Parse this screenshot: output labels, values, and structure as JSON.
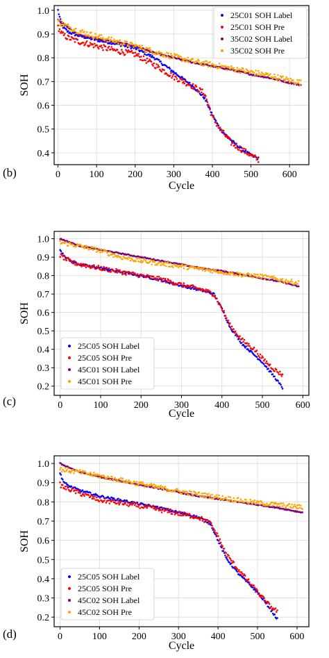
{
  "chart_data": [
    {
      "type": "scatter",
      "panel_label": "(b)",
      "xlabel": "Cycle",
      "ylabel": "SOH",
      "xlim": [
        -10,
        650
      ],
      "ylim": [
        0.35,
        1.02
      ],
      "xticks": [
        0,
        100,
        200,
        300,
        400,
        500,
        600
      ],
      "yticks": [
        0.4,
        0.5,
        0.6,
        0.7,
        0.8,
        0.9,
        1.0
      ],
      "grid": true,
      "legend_position": "top-right",
      "series": [
        {
          "name": "25C01 SOH Label",
          "color": "#0000ff",
          "points": [
            [
              0,
              1.0
            ],
            [
              10,
              0.935
            ],
            [
              25,
              0.91
            ],
            [
              50,
              0.895
            ],
            [
              100,
              0.875
            ],
            [
              150,
              0.86
            ],
            [
              200,
              0.84
            ],
            [
              250,
              0.8
            ],
            [
              300,
              0.74
            ],
            [
              350,
              0.68
            ],
            [
              380,
              0.63
            ],
            [
              400,
              0.56
            ],
            [
              420,
              0.5
            ],
            [
              450,
              0.45
            ],
            [
              480,
              0.41
            ],
            [
              500,
              0.39
            ],
            [
              520,
              0.375
            ]
          ]
        },
        {
          "name": "25C01 SOH Pre",
          "color": "#ff0000",
          "points": [
            [
              0,
              0.93
            ],
            [
              10,
              0.9
            ],
            [
              25,
              0.885
            ],
            [
              50,
              0.87
            ],
            [
              100,
              0.85
            ],
            [
              150,
              0.83
            ],
            [
              200,
              0.815
            ],
            [
              250,
              0.77
            ],
            [
              300,
              0.72
            ],
            [
              350,
              0.68
            ],
            [
              380,
              0.65
            ],
            [
              400,
              0.55
            ],
            [
              420,
              0.5
            ],
            [
              450,
              0.44
            ],
            [
              480,
              0.41
            ],
            [
              500,
              0.39
            ],
            [
              520,
              0.37
            ]
          ]
        },
        {
          "name": "35C02 SOH Label",
          "color": "#800080",
          "points": [
            [
              0,
              0.96
            ],
            [
              50,
              0.9
            ],
            [
              100,
              0.88
            ],
            [
              150,
              0.865
            ],
            [
              200,
              0.85
            ],
            [
              250,
              0.82
            ],
            [
              300,
              0.8
            ],
            [
              350,
              0.78
            ],
            [
              400,
              0.765
            ],
            [
              450,
              0.75
            ],
            [
              500,
              0.73
            ],
            [
              550,
              0.715
            ],
            [
              600,
              0.695
            ],
            [
              630,
              0.685
            ]
          ]
        },
        {
          "name": "35C02 SOH Pre",
          "color": "#ffa500",
          "points": [
            [
              0,
              0.95
            ],
            [
              50,
              0.915
            ],
            [
              100,
              0.89
            ],
            [
              150,
              0.87
            ],
            [
              200,
              0.85
            ],
            [
              250,
              0.825
            ],
            [
              300,
              0.805
            ],
            [
              350,
              0.785
            ],
            [
              400,
              0.77
            ],
            [
              450,
              0.755
            ],
            [
              500,
              0.74
            ],
            [
              550,
              0.725
            ],
            [
              600,
              0.705
            ],
            [
              630,
              0.695
            ]
          ]
        }
      ]
    },
    {
      "type": "scatter",
      "panel_label": "(c)",
      "xlabel": "Cycle",
      "ylabel": "SOH",
      "xlim": [
        -15,
        615
      ],
      "ylim": [
        0.15,
        1.04
      ],
      "xticks": [
        0,
        100,
        200,
        300,
        400,
        500,
        600
      ],
      "yticks": [
        0.2,
        0.3,
        0.4,
        0.5,
        0.6,
        0.7,
        0.8,
        0.9,
        1.0
      ],
      "grid": true,
      "legend_position": "bottom-left",
      "series": [
        {
          "name": "25C05 SOH Label",
          "color": "#0000ff",
          "points": [
            [
              0,
              0.94
            ],
            [
              10,
              0.91
            ],
            [
              25,
              0.88
            ],
            [
              50,
              0.86
            ],
            [
              100,
              0.84
            ],
            [
              150,
              0.82
            ],
            [
              200,
              0.8
            ],
            [
              250,
              0.775
            ],
            [
              300,
              0.745
            ],
            [
              350,
              0.72
            ],
            [
              380,
              0.7
            ],
            [
              400,
              0.62
            ],
            [
              420,
              0.52
            ],
            [
              450,
              0.43
            ],
            [
              480,
              0.37
            ],
            [
              500,
              0.33
            ],
            [
              530,
              0.25
            ],
            [
              550,
              0.19
            ]
          ]
        },
        {
          "name": "25C05 SOH Pre",
          "color": "#ff0000",
          "points": [
            [
              0,
              0.91
            ],
            [
              10,
              0.895
            ],
            [
              25,
              0.875
            ],
            [
              50,
              0.86
            ],
            [
              100,
              0.84
            ],
            [
              150,
              0.82
            ],
            [
              200,
              0.8
            ],
            [
              250,
              0.78
            ],
            [
              300,
              0.75
            ],
            [
              350,
              0.725
            ],
            [
              380,
              0.7
            ],
            [
              400,
              0.62
            ],
            [
              420,
              0.53
            ],
            [
              450,
              0.45
            ],
            [
              480,
              0.4
            ],
            [
              500,
              0.35
            ],
            [
              530,
              0.29
            ],
            [
              550,
              0.26
            ]
          ]
        },
        {
          "name": "45C01 SOH Label",
          "color": "#800080",
          "points": [
            [
              0,
              1.0
            ],
            [
              50,
              0.96
            ],
            [
              100,
              0.94
            ],
            [
              150,
              0.92
            ],
            [
              200,
              0.9
            ],
            [
              250,
              0.88
            ],
            [
              300,
              0.86
            ],
            [
              350,
              0.84
            ],
            [
              400,
              0.825
            ],
            [
              450,
              0.805
            ],
            [
              500,
              0.785
            ],
            [
              550,
              0.765
            ],
            [
              590,
              0.74
            ]
          ]
        },
        {
          "name": "45C01 SOH Pre",
          "color": "#ffa500",
          "points": [
            [
              0,
              0.98
            ],
            [
              50,
              0.96
            ],
            [
              100,
              0.935
            ],
            [
              150,
              0.9
            ],
            [
              200,
              0.88
            ],
            [
              250,
              0.865
            ],
            [
              300,
              0.85
            ],
            [
              350,
              0.835
            ],
            [
              400,
              0.82
            ],
            [
              450,
              0.805
            ],
            [
              500,
              0.795
            ],
            [
              550,
              0.775
            ],
            [
              590,
              0.76
            ]
          ]
        }
      ]
    },
    {
      "type": "scatter",
      "panel_label": "(d)",
      "xlabel": "Cycle",
      "ylabel": "SOH",
      "xlim": [
        -15,
        630
      ],
      "ylim": [
        0.15,
        1.04
      ],
      "xticks": [
        0,
        100,
        200,
        300,
        400,
        500,
        600
      ],
      "yticks": [
        0.2,
        0.3,
        0.4,
        0.5,
        0.6,
        0.7,
        0.8,
        0.9,
        1.0
      ],
      "grid": true,
      "legend_position": "bottom-left",
      "series": [
        {
          "name": "25C05 SOH Label",
          "color": "#0000ff",
          "points": [
            [
              0,
              0.95
            ],
            [
              10,
              0.9
            ],
            [
              25,
              0.88
            ],
            [
              50,
              0.86
            ],
            [
              100,
              0.83
            ],
            [
              150,
              0.81
            ],
            [
              200,
              0.79
            ],
            [
              250,
              0.77
            ],
            [
              300,
              0.745
            ],
            [
              350,
              0.72
            ],
            [
              380,
              0.69
            ],
            [
              400,
              0.6
            ],
            [
              420,
              0.51
            ],
            [
              450,
              0.43
            ],
            [
              480,
              0.37
            ],
            [
              500,
              0.33
            ],
            [
              530,
              0.25
            ],
            [
              550,
              0.19
            ]
          ]
        },
        {
          "name": "25C05 SOH Pre",
          "color": "#ff0000",
          "points": [
            [
              0,
              0.89
            ],
            [
              10,
              0.875
            ],
            [
              25,
              0.865
            ],
            [
              50,
              0.845
            ],
            [
              100,
              0.81
            ],
            [
              150,
              0.795
            ],
            [
              200,
              0.78
            ],
            [
              250,
              0.76
            ],
            [
              300,
              0.74
            ],
            [
              350,
              0.72
            ],
            [
              380,
              0.69
            ],
            [
              400,
              0.62
            ],
            [
              420,
              0.53
            ],
            [
              450,
              0.45
            ],
            [
              480,
              0.38
            ],
            [
              500,
              0.33
            ],
            [
              530,
              0.26
            ],
            [
              550,
              0.23
            ]
          ]
        },
        {
          "name": "45C02 SOH Label",
          "color": "#800080",
          "points": [
            [
              0,
              1.0
            ],
            [
              50,
              0.955
            ],
            [
              100,
              0.93
            ],
            [
              150,
              0.91
            ],
            [
              200,
              0.89
            ],
            [
              250,
              0.87
            ],
            [
              300,
              0.85
            ],
            [
              350,
              0.83
            ],
            [
              400,
              0.815
            ],
            [
              450,
              0.8
            ],
            [
              500,
              0.785
            ],
            [
              550,
              0.77
            ],
            [
              600,
              0.75
            ],
            [
              615,
              0.745
            ]
          ]
        },
        {
          "name": "45C02 SOH Pre",
          "color": "#ffa500",
          "points": [
            [
              0,
              0.97
            ],
            [
              50,
              0.955
            ],
            [
              100,
              0.935
            ],
            [
              150,
              0.915
            ],
            [
              200,
              0.895
            ],
            [
              250,
              0.875
            ],
            [
              300,
              0.855
            ],
            [
              350,
              0.84
            ],
            [
              400,
              0.825
            ],
            [
              450,
              0.81
            ],
            [
              500,
              0.795
            ],
            [
              550,
              0.785
            ],
            [
              600,
              0.775
            ],
            [
              615,
              0.77
            ]
          ]
        }
      ]
    }
  ]
}
